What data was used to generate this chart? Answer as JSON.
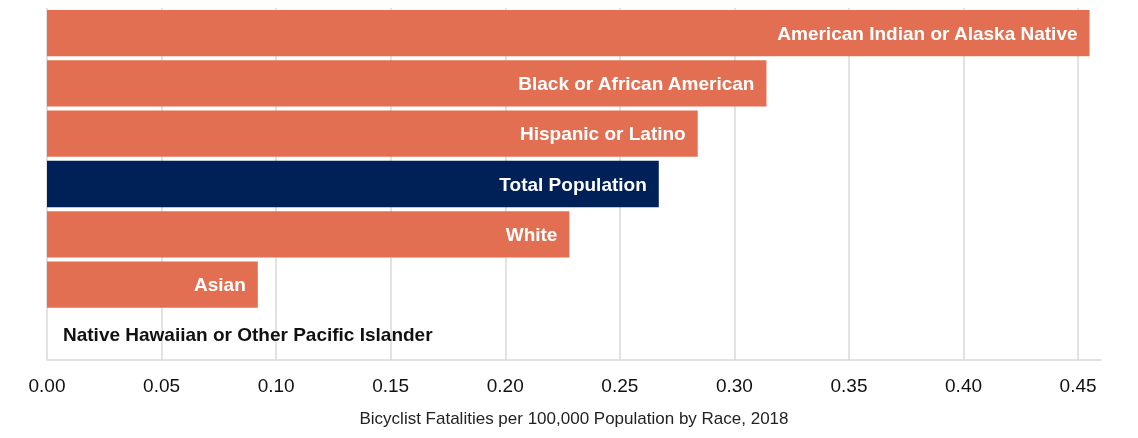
{
  "chart_data": {
    "type": "bar",
    "orientation": "horizontal",
    "xlabel": "Bicyclist Fatalities per 100,000 Population by Race, 2018",
    "categories": [
      "American Indian or Alaska Native",
      "Black or African American",
      "Hispanic or Latino",
      "Total Population",
      "White",
      "Asian",
      "Native Hawaiian or Other Pacific Islander"
    ],
    "values": [
      0.455,
      0.314,
      0.284,
      0.267,
      0.228,
      0.092,
      0
    ],
    "colors": [
      "#e36f52",
      "#e36f52",
      "#e36f52",
      "#002058",
      "#e36f52",
      "#e36f52",
      "#e36f52"
    ],
    "xlim": [
      0,
      0.46
    ],
    "xticks": [
      {
        "value": 0,
        "label": "0.00"
      },
      {
        "value": 0.05,
        "label": "0.05"
      },
      {
        "value": 0.1,
        "label": "0.10"
      },
      {
        "value": 0.15,
        "label": "0.15"
      },
      {
        "value": 0.2,
        "label": "0.20"
      },
      {
        "value": 0.25,
        "label": "0.25"
      },
      {
        "value": 0.3,
        "label": "0.30"
      },
      {
        "value": 0.35,
        "label": "0.35"
      },
      {
        "value": 0.4,
        "label": "0.40"
      },
      {
        "value": 0.45,
        "label": "0.45"
      }
    ],
    "grid": "x",
    "tick_labels": "x"
  }
}
